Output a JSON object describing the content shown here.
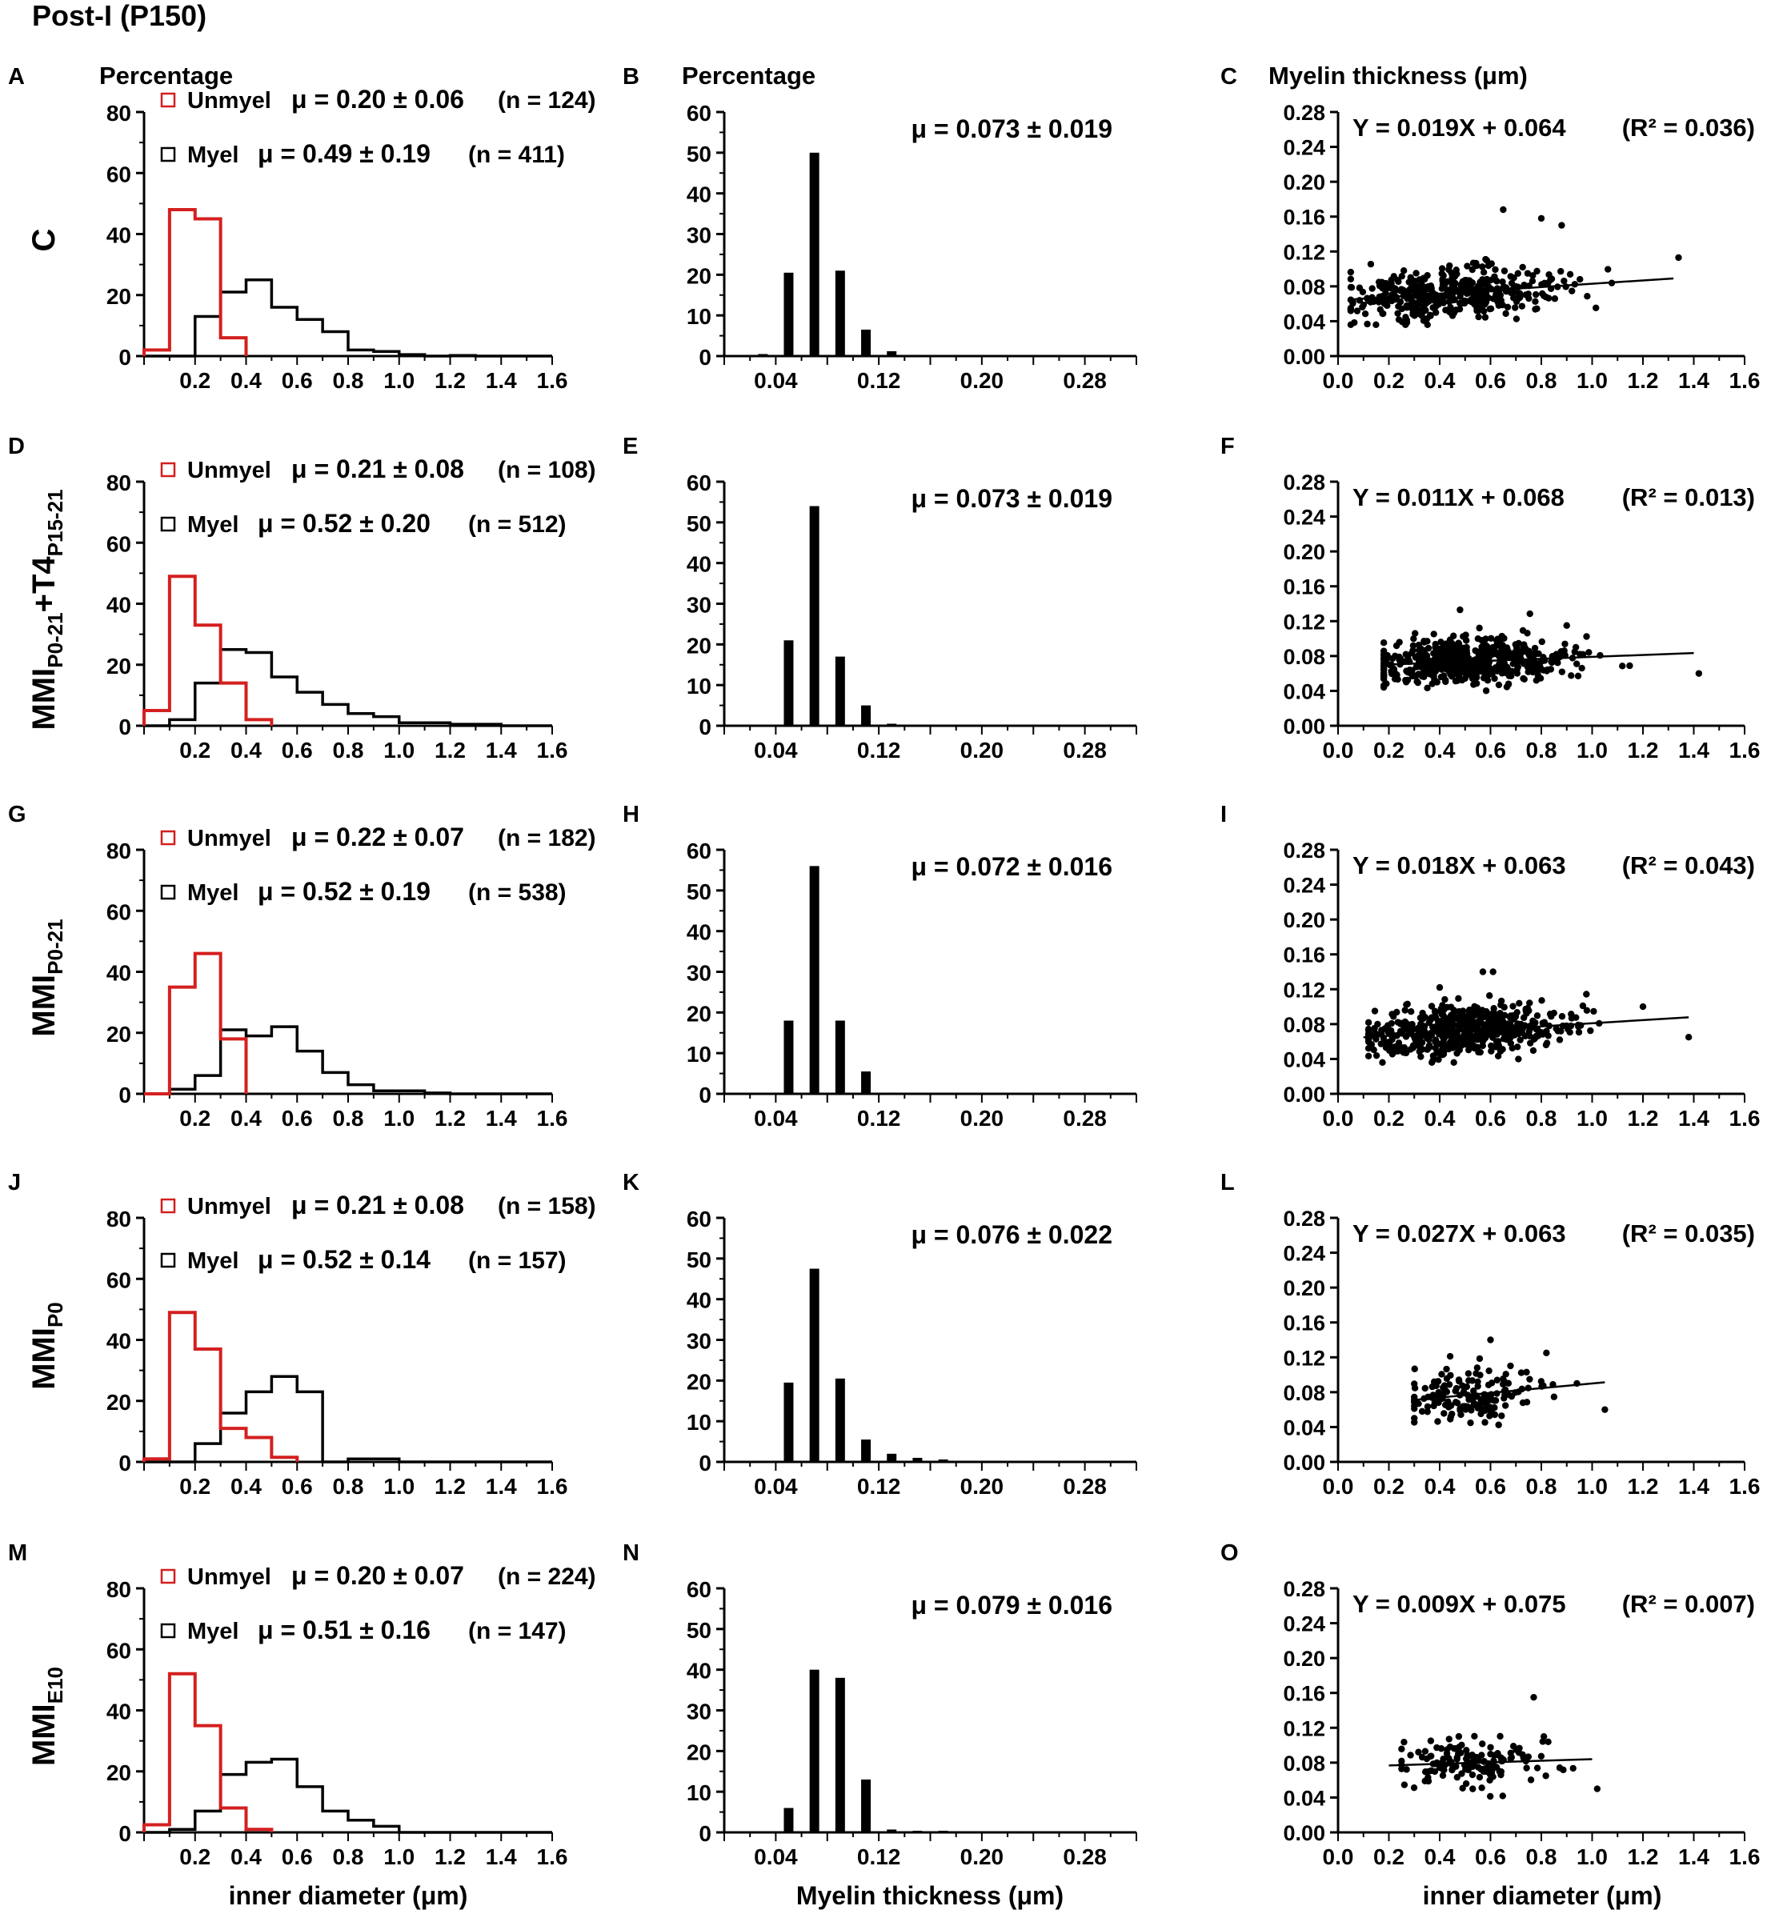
{
  "figure_title": "Post-I (P150)",
  "x_label_left": "inner  diameter (μm)",
  "x_label_mid": "Myelin thickness (μm)",
  "x_label_right": "inner  diameter (μm)",
  "column_headers": {
    "A": "Percentage",
    "B": "Percentage",
    "C": "Myelin thickness (μm)"
  },
  "legend_labels": {
    "unmyel": "Unmyel",
    "myel": "Myel"
  },
  "colors": {
    "unmyel": "#d41f1f",
    "myel": "#000000"
  },
  "rows": [
    {
      "group_html": "C",
      "panels": [
        "A",
        "B",
        "C"
      ]
    },
    {
      "group_html": "MMI<tspan font-size='26' dy='10'>P0-21</tspan><tspan dy='-10'>+T4</tspan><tspan font-size='26' dy='10'>P15-21</tspan>",
      "panels": [
        "D",
        "E",
        "F"
      ]
    },
    {
      "group_html": "MMI<tspan font-size='26' dy='10'>P0-21</tspan>",
      "panels": [
        "G",
        "H",
        "I"
      ]
    },
    {
      "group_html": "MMI<tspan font-size='26' dy='10'>P0</tspan>",
      "panels": [
        "J",
        "K",
        "L"
      ]
    },
    {
      "group_html": "MMI<tspan font-size='26' dy='10'>E10</tspan>",
      "panels": [
        "M",
        "N",
        "O"
      ]
    }
  ],
  "chart_data": [
    {
      "panel": "A",
      "type": "histogram-step",
      "xlabel": "inner diameter (μm)",
      "ylabel": "Percentage",
      "xlim": [
        0,
        1.6
      ],
      "ylim": [
        0,
        80
      ],
      "xticks": [
        "0.2",
        "0.4",
        "0.6",
        "0.8",
        "1.0",
        "1.2",
        "1.4",
        "1.6"
      ],
      "yticks": [
        "0",
        "20",
        "40",
        "60",
        "80"
      ],
      "series": [
        {
          "name": "Unmyel",
          "mu": "μ = 0.20 ± 0.06",
          "n": "(n = 124)",
          "values": [
            2,
            48,
            45,
            6
          ]
        },
        {
          "name": "Myel",
          "mu": "μ = 0.49 ± 0.19",
          "n": "(n = 411)",
          "values": [
            0,
            0,
            13,
            21,
            25,
            16,
            12,
            8,
            2,
            1.5,
            0.5,
            0,
            0.2,
            0,
            0,
            0
          ]
        }
      ]
    },
    {
      "panel": "B",
      "type": "bar",
      "xlabel": "Myelin thickness (μm)",
      "ylabel": "Percentage",
      "xlim": [
        0,
        0.32
      ],
      "ylim": [
        0,
        60
      ],
      "xticks": [
        "0.04",
        "0.12",
        "0.20",
        "0.28"
      ],
      "yticks": [
        "0",
        "10",
        "20",
        "30",
        "40",
        "50",
        "60"
      ],
      "annotation": "μ = 0.073 ± 0.019",
      "bins": [
        0.03,
        0.05,
        0.07,
        0.09,
        0.11,
        0.13,
        0.15
      ],
      "values": [
        0.5,
        20.5,
        50,
        21,
        6.5,
        1.2,
        0.3
      ]
    },
    {
      "panel": "C",
      "type": "scatter",
      "xlabel": "inner diameter (μm)",
      "ylabel": "Myelin thickness (μm)",
      "xlim": [
        0,
        1.6
      ],
      "ylim": [
        0,
        0.28
      ],
      "xticks": [
        "0.0",
        "0.2",
        "0.4",
        "0.6",
        "0.8",
        "1.0",
        "1.2",
        "1.4",
        "1.6"
      ],
      "yticks": [
        "0.00",
        "0.04",
        "0.08",
        "0.12",
        "0.16",
        "0.20",
        "0.24",
        "0.28"
      ],
      "equation": "Y = 0.019X + 0.064",
      "r2": "(R² = 0.036)",
      "slope": 0.019,
      "intercept": 0.064,
      "fit_range": [
        0.04,
        1.32
      ],
      "cloud": {
        "n": 411,
        "x_min": 0.05,
        "x_max": 1.35,
        "x_mean": 0.45,
        "x_sd": 0.2,
        "y_sd": 0.014
      },
      "outliers": [
        [
          0.8,
          0.158
        ],
        [
          0.65,
          0.168
        ],
        [
          1.34,
          0.113
        ],
        [
          0.88,
          0.15
        ]
      ]
    },
    {
      "panel": "D",
      "type": "histogram-step",
      "xlabel": "inner diameter (μm)",
      "ylabel": "Percentage",
      "xlim": [
        0,
        1.6
      ],
      "ylim": [
        0,
        80
      ],
      "xticks": [
        "0.2",
        "0.4",
        "0.6",
        "0.8",
        "1.0",
        "1.2",
        "1.4",
        "1.6"
      ],
      "yticks": [
        "0",
        "20",
        "40",
        "60",
        "80"
      ],
      "series": [
        {
          "name": "Unmyel",
          "mu": "μ = 0.21 ± 0.08",
          "n": "(n = 108)",
          "values": [
            5,
            49,
            33,
            14,
            2
          ]
        },
        {
          "name": "Myel",
          "mu": "μ = 0.52 ± 0.20",
          "n": "(n = 512)",
          "values": [
            0,
            2,
            14,
            25,
            24,
            16,
            11,
            7,
            4,
            3,
            1,
            1,
            0.5,
            0.5,
            0,
            0
          ]
        }
      ]
    },
    {
      "panel": "E",
      "type": "bar",
      "xlabel": "Myelin thickness (μm)",
      "ylabel": "Percentage",
      "xlim": [
        0,
        0.32
      ],
      "ylim": [
        0,
        60
      ],
      "xticks": [
        "0.04",
        "0.12",
        "0.20",
        "0.28"
      ],
      "yticks": [
        "0",
        "10",
        "20",
        "30",
        "40",
        "50",
        "60"
      ],
      "annotation": "μ = 0.073 ± 0.019",
      "bins": [
        0.05,
        0.07,
        0.09,
        0.11,
        0.13
      ],
      "values": [
        21,
        54,
        17,
        5,
        0.5
      ]
    },
    {
      "panel": "F",
      "type": "scatter",
      "xlabel": "inner diameter (μm)",
      "ylabel": "Myelin thickness (μm)",
      "xlim": [
        0,
        1.6
      ],
      "ylim": [
        0,
        0.28
      ],
      "xticks": [
        "0.0",
        "0.2",
        "0.4",
        "0.6",
        "0.8",
        "1.0",
        "1.2",
        "1.4",
        "1.6"
      ],
      "yticks": [
        "0.00",
        "0.04",
        "0.08",
        "0.12",
        "0.16",
        "0.20",
        "0.24",
        "0.28"
      ],
      "equation": "Y = 0.011X + 0.068",
      "r2": "(R² = 0.013)",
      "slope": 0.011,
      "intercept": 0.068,
      "fit_range": [
        0.2,
        1.4
      ],
      "cloud": {
        "n": 512,
        "x_min": 0.18,
        "x_max": 1.42,
        "x_mean": 0.5,
        "x_sd": 0.2,
        "y_sd": 0.013
      },
      "outliers": [
        [
          0.48,
          0.133
        ],
        [
          0.9,
          0.115
        ],
        [
          1.42,
          0.06
        ]
      ]
    },
    {
      "panel": "G",
      "type": "histogram-step",
      "xlabel": "inner diameter (μm)",
      "ylabel": "Percentage",
      "xlim": [
        0,
        1.6
      ],
      "ylim": [
        0,
        80
      ],
      "xticks": [
        "0.2",
        "0.4",
        "0.6",
        "0.8",
        "1.0",
        "1.2",
        "1.4",
        "1.6"
      ],
      "yticks": [
        "0",
        "20",
        "40",
        "60",
        "80"
      ],
      "series": [
        {
          "name": "Unmyel",
          "mu": "μ = 0.22 ± 0.07",
          "n": "(n = 182)",
          "values": [
            0,
            35,
            46,
            18
          ]
        },
        {
          "name": "Myel",
          "mu": "μ = 0.52 ± 0.19",
          "n": "(n = 538)",
          "values": [
            0,
            1.5,
            6,
            21,
            19,
            22,
            14,
            7,
            3,
            1,
            1,
            0.3,
            0,
            0,
            0,
            0
          ]
        }
      ]
    },
    {
      "panel": "H",
      "type": "bar",
      "xlabel": "Myelin thickness (μm)",
      "ylabel": "Percentage",
      "xlim": [
        0,
        0.32
      ],
      "ylim": [
        0,
        60
      ],
      "xticks": [
        "0.04",
        "0.12",
        "0.20",
        "0.28"
      ],
      "yticks": [
        "0",
        "10",
        "20",
        "30",
        "40",
        "50",
        "60"
      ],
      "annotation": "μ = 0.072 ± 0.016",
      "bins": [
        0.05,
        0.07,
        0.09,
        0.11,
        0.13
      ],
      "values": [
        18,
        56,
        18,
        5.5,
        0.3
      ]
    },
    {
      "panel": "I",
      "type": "scatter",
      "xlabel": "inner diameter (μm)",
      "ylabel": "Myelin thickness (μm)",
      "xlim": [
        0,
        1.6
      ],
      "ylim": [
        0,
        0.28
      ],
      "xticks": [
        "0.0",
        "0.2",
        "0.4",
        "0.6",
        "0.8",
        "1.0",
        "1.2",
        "1.4",
        "1.6"
      ],
      "yticks": [
        "0.00",
        "0.04",
        "0.08",
        "0.12",
        "0.16",
        "0.20",
        "0.24",
        "0.28"
      ],
      "equation": "Y = 0.018X + 0.063",
      "r2": "(R² = 0.043)",
      "slope": 0.018,
      "intercept": 0.063,
      "fit_range": [
        0.1,
        1.38
      ],
      "cloud": {
        "n": 538,
        "x_min": 0.12,
        "x_max": 1.38,
        "x_mean": 0.5,
        "x_sd": 0.2,
        "y_sd": 0.014
      },
      "outliers": [
        [
          0.57,
          0.14
        ],
        [
          0.61,
          0.14
        ],
        [
          0.4,
          0.122
        ],
        [
          1.38,
          0.065
        ],
        [
          1.2,
          0.1
        ]
      ]
    },
    {
      "panel": "J",
      "type": "histogram-step",
      "xlabel": "inner diameter (μm)",
      "ylabel": "Percentage",
      "xlim": [
        0,
        1.6
      ],
      "ylim": [
        0,
        80
      ],
      "xticks": [
        "0.2",
        "0.4",
        "0.6",
        "0.8",
        "1.0",
        "1.2",
        "1.4",
        "1.6"
      ],
      "yticks": [
        "0",
        "20",
        "40",
        "60",
        "80"
      ],
      "series": [
        {
          "name": "Unmyel",
          "mu": "μ = 0.21 ± 0.08",
          "n": "(n = 158)",
          "values": [
            1,
            49,
            37,
            11,
            8,
            1.5
          ]
        },
        {
          "name": "Myel",
          "mu": "μ = 0.52 ± 0.14",
          "n": "(n = 157)",
          "values": [
            0,
            0,
            6,
            16,
            23,
            28,
            23,
            0,
            1,
            1,
            0,
            0,
            0,
            0,
            0,
            0
          ]
        }
      ]
    },
    {
      "panel": "K",
      "type": "bar",
      "xlabel": "Myelin thickness (μm)",
      "ylabel": "Percentage",
      "xlim": [
        0,
        0.32
      ],
      "ylim": [
        0,
        60
      ],
      "xticks": [
        "0.04",
        "0.12",
        "0.20",
        "0.28"
      ],
      "yticks": [
        "0",
        "10",
        "20",
        "30",
        "40",
        "50",
        "60"
      ],
      "annotation": "μ = 0.076 ± 0.022",
      "bins": [
        0.05,
        0.07,
        0.09,
        0.11,
        0.13,
        0.15,
        0.17
      ],
      "values": [
        19.5,
        47.5,
        20.5,
        5.5,
        2,
        1,
        0.6
      ]
    },
    {
      "panel": "L",
      "type": "scatter",
      "xlabel": "inner diameter (μm)",
      "ylabel": "Myelin thickness (μm)",
      "xlim": [
        0,
        1.6
      ],
      "ylim": [
        0,
        0.28
      ],
      "xticks": [
        "0.0",
        "0.2",
        "0.4",
        "0.6",
        "0.8",
        "1.0",
        "1.2",
        "1.4",
        "1.6"
      ],
      "yticks": [
        "0.00",
        "0.04",
        "0.08",
        "0.12",
        "0.16",
        "0.20",
        "0.24",
        "0.28"
      ],
      "equation": "Y = 0.027X + 0.063",
      "r2": "(R² = 0.035)",
      "slope": 0.027,
      "intercept": 0.063,
      "fit_range": [
        0.3,
        1.05
      ],
      "cloud": {
        "n": 157,
        "x_min": 0.3,
        "x_max": 0.85,
        "x_mean": 0.52,
        "x_sd": 0.14,
        "y_sd": 0.016
      },
      "outliers": [
        [
          1.05,
          0.06
        ],
        [
          0.94,
          0.09
        ],
        [
          0.82,
          0.125
        ],
        [
          0.6,
          0.14
        ]
      ]
    },
    {
      "panel": "M",
      "type": "histogram-step",
      "xlabel": "inner diameter (μm)",
      "ylabel": "Percentage",
      "xlim": [
        0,
        1.6
      ],
      "ylim": [
        0,
        80
      ],
      "xticks": [
        "0.2",
        "0.4",
        "0.6",
        "0.8",
        "1.0",
        "1.2",
        "1.4",
        "1.6"
      ],
      "yticks": [
        "0",
        "20",
        "40",
        "60",
        "80"
      ],
      "series": [
        {
          "name": "Unmyel",
          "mu": "μ = 0.20 ± 0.07",
          "n": "(n = 224)",
          "values": [
            2.5,
            52,
            35,
            8,
            1
          ]
        },
        {
          "name": "Myel",
          "mu": "μ = 0.51 ± 0.16",
          "n": "(n = 147)",
          "values": [
            0,
            1,
            7,
            19,
            23,
            24,
            15,
            7,
            4,
            2,
            0,
            0,
            0,
            0,
            0,
            0
          ]
        }
      ]
    },
    {
      "panel": "N",
      "type": "bar",
      "xlabel": "Myelin thickness (μm)",
      "ylabel": "Percentage",
      "xlim": [
        0,
        0.32
      ],
      "ylim": [
        0,
        60
      ],
      "xticks": [
        "0.04",
        "0.12",
        "0.20",
        "0.28"
      ],
      "yticks": [
        "0",
        "10",
        "20",
        "30",
        "40",
        "50",
        "60"
      ],
      "annotation": "μ = 0.079 ± 0.016",
      "bins": [
        0.05,
        0.07,
        0.09,
        0.11,
        0.13,
        0.15,
        0.17
      ],
      "values": [
        6,
        40,
        38,
        13,
        0.7,
        0.4,
        0.4
      ]
    },
    {
      "panel": "O",
      "type": "scatter",
      "xlabel": "inner diameter (μm)",
      "ylabel": "Myelin thickness (μm)",
      "xlim": [
        0,
        1.6
      ],
      "ylim": [
        0,
        0.28
      ],
      "xticks": [
        "0.0",
        "0.2",
        "0.4",
        "0.6",
        "0.8",
        "1.0",
        "1.2",
        "1.4",
        "1.6"
      ],
      "yticks": [
        "0.00",
        "0.04",
        "0.08",
        "0.12",
        "0.16",
        "0.20",
        "0.24",
        "0.28"
      ],
      "equation": "Y = 0.009X + 0.075",
      "r2": "(R² = 0.007)",
      "slope": 0.009,
      "intercept": 0.075,
      "fit_range": [
        0.2,
        1.0
      ],
      "cloud": {
        "n": 147,
        "x_min": 0.25,
        "x_max": 0.95,
        "x_mean": 0.52,
        "x_sd": 0.16,
        "y_sd": 0.013
      },
      "outliers": [
        [
          0.77,
          0.155
        ],
        [
          1.02,
          0.05
        ],
        [
          0.81,
          0.11
        ]
      ]
    }
  ]
}
